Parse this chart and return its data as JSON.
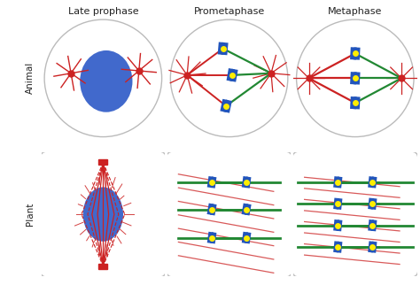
{
  "col_labels": [
    "Late prophase",
    "Prometaphase",
    "Metaphase"
  ],
  "row_labels": [
    "Animal",
    "Plant"
  ],
  "bg_color": "#ffffff",
  "nucleus_color": "#4169cc",
  "centrosome_color": "#cc2222",
  "spindle_color_red": "#cc2222",
  "spindle_color_green": "#228833",
  "kinetochore_color": "#ffee00",
  "chromosome_color": "#2255bb",
  "title_fontsize": 8,
  "label_fontsize": 7.5,
  "cell_edge_color": "#bbbbbb",
  "cell_lw": 1.0
}
